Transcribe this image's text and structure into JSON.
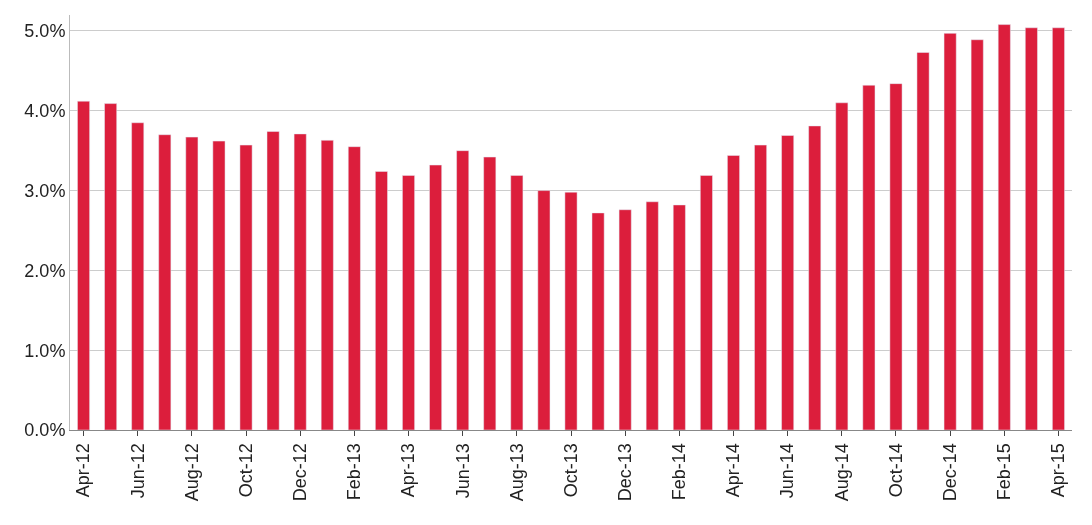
{
  "chart_data": {
    "type": "bar",
    "categories": [
      "Apr-12",
      null,
      "Jun-12",
      null,
      "Aug-12",
      null,
      "Oct-12",
      null,
      "Dec-12",
      null,
      "Feb-13",
      null,
      "Apr-13",
      null,
      "Jun-13",
      null,
      "Aug-13",
      null,
      "Oct-13",
      null,
      "Dec-13",
      null,
      "Feb-14",
      null,
      "Apr-14",
      null,
      "Jun-14",
      null,
      "Aug-14",
      null,
      "Oct-14",
      null,
      "Dec-14",
      null,
      "Feb-15",
      null,
      "Apr-15"
    ],
    "values": [
      4.12,
      4.09,
      3.85,
      3.7,
      3.67,
      3.62,
      3.57,
      3.74,
      3.71,
      3.63,
      3.55,
      3.24,
      3.19,
      3.32,
      3.5,
      3.42,
      3.19,
      3.0,
      2.98,
      2.72,
      2.76,
      2.86,
      2.82,
      3.19,
      3.44,
      3.57,
      3.69,
      3.81,
      4.1,
      4.32,
      4.34,
      4.73,
      4.97,
      4.89,
      5.08,
      5.04,
      5.04
    ],
    "color": "#dc1e3c",
    "ylim": [
      0,
      5.2
    ],
    "yticks": [
      {
        "value": 0,
        "label": "0.0%"
      },
      {
        "value": 1,
        "label": "1.0%"
      },
      {
        "value": 2,
        "label": "2.0%"
      },
      {
        "value": 3,
        "label": "3.0%"
      },
      {
        "value": 4,
        "label": "4.0%"
      },
      {
        "value": 5,
        "label": "5.0%"
      }
    ],
    "grid": "y"
  }
}
